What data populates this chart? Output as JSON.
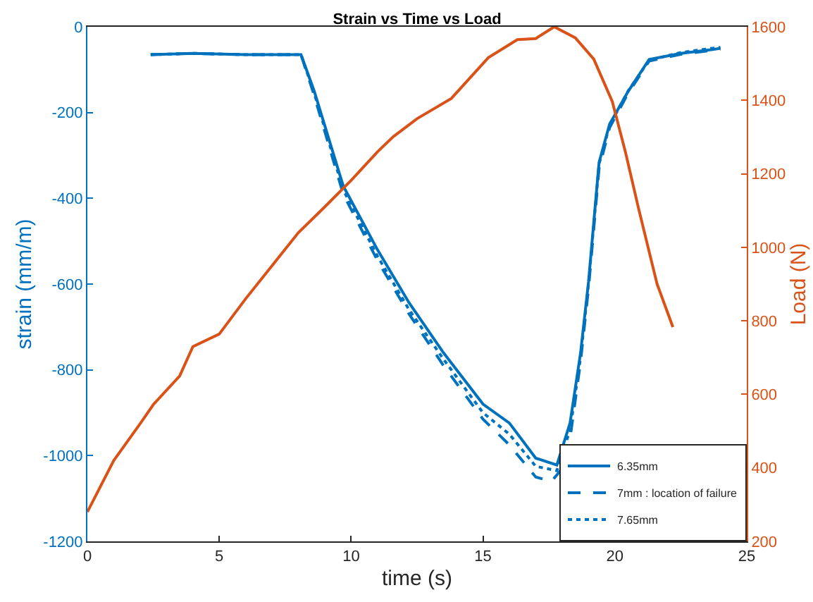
{
  "chart_data": {
    "type": "line",
    "title": "Strain vs Time vs Load",
    "xlabel": "time (s)",
    "ylabel": "strain (mm/m)",
    "y2label": "Load (N)",
    "xlim": [
      0,
      25
    ],
    "xticks": [
      0,
      5,
      10,
      15,
      20,
      25
    ],
    "ylim": [
      -1200,
      0
    ],
    "yticks": [
      -1200,
      -1000,
      -800,
      -600,
      -400,
      -200,
      0
    ],
    "y2lim": [
      200,
      1600
    ],
    "y2ticks": [
      200,
      400,
      600,
      800,
      1000,
      1200,
      1400,
      1600
    ],
    "grid": false,
    "legend": "bottom right",
    "marker": "none",
    "series": [
      {
        "name": "6.35mm",
        "color": "#0072bd",
        "line_style": "solid",
        "x": [
          2.4,
          4,
          6,
          8.1,
          8.6,
          9.7,
          11,
          12.2,
          13.5,
          15,
          16,
          17,
          17.8,
          18.3,
          18.7,
          19,
          19.4,
          19.8,
          20.5,
          21.3,
          22.5,
          23.7,
          24
        ],
        "values": [
          -65,
          -62,
          -65,
          -65,
          -150,
          -371,
          -520,
          -644,
          -760,
          -880,
          -924,
          -1006,
          -1022,
          -924,
          -760,
          -595,
          -316,
          -227,
          -151,
          -76,
          -62,
          -53,
          -50
        ]
      },
      {
        "name": "7mm : location of failure",
        "color": "#0072bd",
        "line_style": "dashed",
        "x": [
          2.4,
          4,
          6,
          8.1,
          8.6,
          9.7,
          11,
          12.2,
          13.5,
          15,
          16,
          17,
          17.6,
          18,
          18.3,
          18.7,
          19,
          19.4,
          19.8,
          20.5,
          21.3,
          22.5,
          23.7,
          24
        ],
        "values": [
          -65,
          -62,
          -65,
          -65,
          -160,
          -390,
          -545,
          -670,
          -790,
          -915,
          -975,
          -1050,
          -1060,
          -1030,
          -960,
          -780,
          -610,
          -330,
          -235,
          -155,
          -80,
          -64,
          -55,
          -52
        ]
      },
      {
        "name": "7.65mm",
        "color": "#0072bd",
        "line_style": "dotted",
        "x": [
          2.4,
          4,
          6,
          8.1,
          8.6,
          9.7,
          11,
          12.2,
          13.5,
          15,
          16,
          17,
          17.8,
          18.3,
          18.7,
          19,
          19.4,
          19.8,
          20.5,
          21.3,
          22.5,
          23.7,
          24
        ],
        "values": [
          -65,
          -62,
          -65,
          -65,
          -155,
          -380,
          -535,
          -660,
          -775,
          -900,
          -950,
          -1025,
          -1035,
          -940,
          -770,
          -600,
          -320,
          -230,
          -150,
          -78,
          -60,
          -50,
          -48
        ]
      },
      {
        "color": "#d95319",
        "line_style": "solid",
        "axis": "y2",
        "x": [
          0,
          1,
          2,
          2.5,
          3.5,
          4,
          5,
          6,
          7,
          8,
          9,
          10,
          11,
          11.6,
          12.5,
          13.8,
          15.2,
          16.3,
          17,
          17.7,
          18.5,
          19.2,
          19.9,
          20.4,
          20.9,
          21.6,
          22.2
        ],
        "values": [
          280,
          420,
          520,
          572,
          650,
          730,
          764,
          860,
          950,
          1040,
          1110,
          1182,
          1260,
          1301,
          1350,
          1405,
          1516,
          1565,
          1568,
          1600,
          1570,
          1512,
          1397,
          1259,
          1105,
          900,
          783
        ]
      }
    ]
  }
}
